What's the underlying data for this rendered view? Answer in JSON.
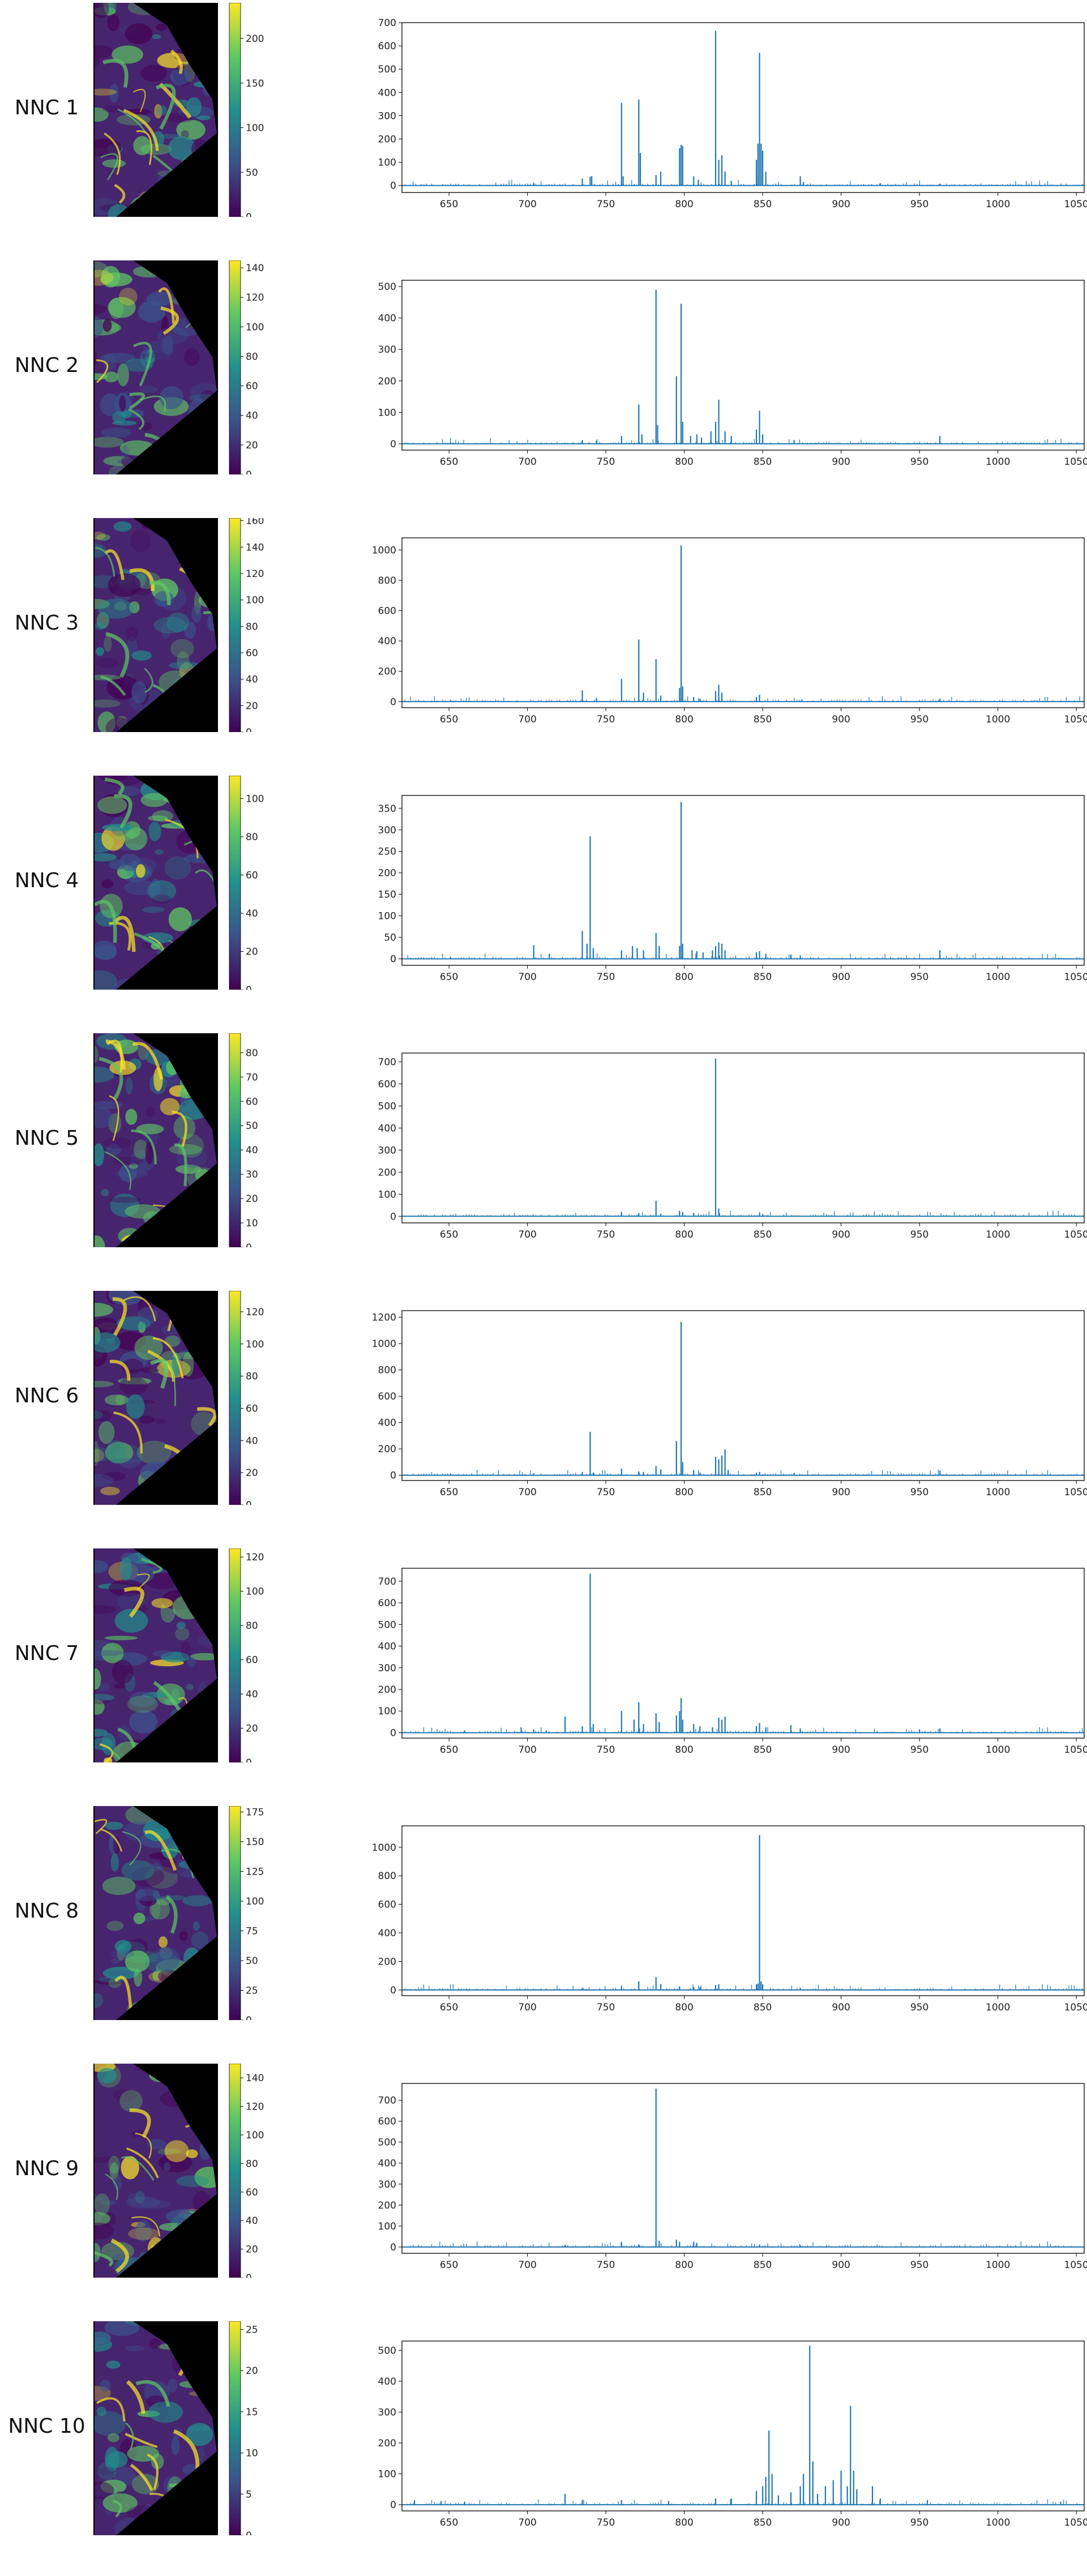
{
  "x_ticks": [
    650,
    700,
    750,
    800,
    850,
    900,
    950,
    1000,
    1050
  ],
  "colors": {
    "line": "#1f77b4",
    "viridis": [
      "#440154",
      "#3b528b",
      "#21918c",
      "#5ec962",
      "#fde725"
    ]
  },
  "chart_data": [
    {
      "type": "line",
      "label": "NNC 1",
      "xlim": [
        620,
        1055
      ],
      "ylim": [
        -30,
        700
      ],
      "y_ticks": [
        0,
        100,
        200,
        300,
        400,
        500,
        600,
        700
      ],
      "cbar_ticks": [
        0,
        50,
        100,
        150,
        200
      ],
      "cbar_max": 240,
      "peaks": [
        [
          704,
          12
        ],
        [
          735,
          30
        ],
        [
          740,
          38
        ],
        [
          741,
          40
        ],
        [
          760,
          355
        ],
        [
          761,
          40
        ],
        [
          771,
          370
        ],
        [
          772,
          140
        ],
        [
          782,
          45
        ],
        [
          785,
          60
        ],
        [
          797,
          160
        ],
        [
          798,
          175
        ],
        [
          799,
          170
        ],
        [
          806,
          40
        ],
        [
          809,
          25
        ],
        [
          820,
          665
        ],
        [
          822,
          110
        ],
        [
          824,
          130
        ],
        [
          826,
          60
        ],
        [
          830,
          20
        ],
        [
          846,
          110
        ],
        [
          847,
          180
        ],
        [
          848,
          570
        ],
        [
          849,
          180
        ],
        [
          850,
          150
        ],
        [
          852,
          60
        ],
        [
          874,
          40
        ],
        [
          876,
          15
        ],
        [
          925,
          10
        ],
        [
          963,
          8
        ]
      ]
    },
    {
      "type": "line",
      "label": "NNC 2",
      "xlim": [
        620,
        1055
      ],
      "ylim": [
        -20,
        520
      ],
      "y_ticks": [
        0,
        100,
        200,
        300,
        400,
        500
      ],
      "cbar_ticks": [
        0,
        20,
        40,
        60,
        80,
        100,
        120,
        140
      ],
      "cbar_max": 145,
      "peaks": [
        [
          651,
          5
        ],
        [
          735,
          12
        ],
        [
          744,
          10
        ],
        [
          760,
          25
        ],
        [
          771,
          125
        ],
        [
          773,
          30
        ],
        [
          782,
          490
        ],
        [
          783,
          60
        ],
        [
          795,
          215
        ],
        [
          798,
          445
        ],
        [
          799,
          70
        ],
        [
          804,
          25
        ],
        [
          808,
          30
        ],
        [
          811,
          20
        ],
        [
          817,
          40
        ],
        [
          820,
          70
        ],
        [
          822,
          140
        ],
        [
          826,
          40
        ],
        [
          830,
          25
        ],
        [
          846,
          45
        ],
        [
          848,
          105
        ],
        [
          850,
          30
        ],
        [
          870,
          12
        ],
        [
          963,
          25
        ]
      ]
    },
    {
      "type": "line",
      "label": "NNC 3",
      "xlim": [
        620,
        1055
      ],
      "ylim": [
        -40,
        1080
      ],
      "y_ticks": [
        0,
        200,
        400,
        600,
        800,
        1000
      ],
      "cbar_ticks": [
        0,
        20,
        40,
        60,
        80,
        100,
        120,
        140,
        160
      ],
      "cbar_max": 162,
      "peaks": [
        [
          651,
          8
        ],
        [
          735,
          75
        ],
        [
          744,
          25
        ],
        [
          760,
          150
        ],
        [
          771,
          410
        ],
        [
          774,
          60
        ],
        [
          782,
          280
        ],
        [
          785,
          40
        ],
        [
          797,
          90
        ],
        [
          798,
          1030
        ],
        [
          799,
          100
        ],
        [
          806,
          30
        ],
        [
          810,
          20
        ],
        [
          820,
          70
        ],
        [
          822,
          110
        ],
        [
          824,
          60
        ],
        [
          846,
          30
        ],
        [
          848,
          45
        ],
        [
          875,
          15
        ],
        [
          963,
          20
        ]
      ]
    },
    {
      "type": "line",
      "label": "NNC 4",
      "xlim": [
        620,
        1055
      ],
      "ylim": [
        -15,
        380
      ],
      "y_ticks": [
        0,
        50,
        100,
        150,
        200,
        250,
        300,
        350
      ],
      "cbar_ticks": [
        0,
        20,
        40,
        60,
        80,
        100
      ],
      "cbar_max": 112,
      "peaks": [
        [
          651,
          5
        ],
        [
          704,
          32
        ],
        [
          714,
          12
        ],
        [
          735,
          65
        ],
        [
          738,
          35
        ],
        [
          740,
          285
        ],
        [
          742,
          25
        ],
        [
          760,
          20
        ],
        [
          767,
          30
        ],
        [
          770,
          25
        ],
        [
          774,
          20
        ],
        [
          782,
          60
        ],
        [
          784,
          30
        ],
        [
          797,
          30
        ],
        [
          798,
          365
        ],
        [
          799,
          35
        ],
        [
          805,
          20
        ],
        [
          808,
          18
        ],
        [
          812,
          15
        ],
        [
          818,
          20
        ],
        [
          820,
          30
        ],
        [
          822,
          38
        ],
        [
          824,
          35
        ],
        [
          826,
          20
        ],
        [
          846,
          15
        ],
        [
          848,
          18
        ],
        [
          852,
          12
        ],
        [
          868,
          10
        ],
        [
          874,
          8
        ],
        [
          963,
          20
        ]
      ]
    },
    {
      "type": "line",
      "label": "NNC 5",
      "xlim": [
        620,
        1055
      ],
      "ylim": [
        -30,
        740
      ],
      "y_ticks": [
        0,
        100,
        200,
        300,
        400,
        500,
        600,
        700
      ],
      "cbar_ticks": [
        0,
        10,
        20,
        30,
        40,
        50,
        60,
        70,
        80
      ],
      "cbar_max": 88,
      "peaks": [
        [
          760,
          20
        ],
        [
          771,
          15
        ],
        [
          782,
          70
        ],
        [
          785,
          12
        ],
        [
          797,
          25
        ],
        [
          799,
          20
        ],
        [
          806,
          15
        ],
        [
          820,
          715
        ],
        [
          822,
          35
        ],
        [
          848,
          15
        ],
        [
          850,
          10
        ]
      ]
    },
    {
      "type": "line",
      "label": "NNC 6",
      "xlim": [
        620,
        1055
      ],
      "ylim": [
        -40,
        1250
      ],
      "y_ticks": [
        0,
        200,
        400,
        600,
        800,
        1000,
        1200
      ],
      "cbar_ticks": [
        0,
        20,
        40,
        60,
        80,
        100,
        120
      ],
      "cbar_max": 133,
      "peaks": [
        [
          651,
          8
        ],
        [
          704,
          15
        ],
        [
          735,
          25
        ],
        [
          740,
          330
        ],
        [
          742,
          20
        ],
        [
          760,
          50
        ],
        [
          771,
          30
        ],
        [
          774,
          25
        ],
        [
          782,
          70
        ],
        [
          785,
          45
        ],
        [
          795,
          260
        ],
        [
          798,
          1165
        ],
        [
          799,
          100
        ],
        [
          806,
          40
        ],
        [
          810,
          20
        ],
        [
          820,
          140
        ],
        [
          822,
          120
        ],
        [
          824,
          150
        ],
        [
          826,
          195
        ],
        [
          828,
          40
        ],
        [
          846,
          20
        ],
        [
          848,
          25
        ],
        [
          870,
          15
        ],
        [
          963,
          35
        ]
      ]
    },
    {
      "type": "line",
      "label": "NNC 7",
      "xlim": [
        620,
        1055
      ],
      "ylim": [
        -25,
        760
      ],
      "y_ticks": [
        0,
        100,
        200,
        300,
        400,
        500,
        600,
        700
      ],
      "cbar_ticks": [
        0,
        20,
        40,
        60,
        80,
        100,
        120
      ],
      "cbar_max": 125,
      "peaks": [
        [
          660,
          10
        ],
        [
          696,
          25
        ],
        [
          704,
          15
        ],
        [
          712,
          10
        ],
        [
          724,
          75
        ],
        [
          735,
          30
        ],
        [
          740,
          735
        ],
        [
          742,
          40
        ],
        [
          760,
          100
        ],
        [
          768,
          60
        ],
        [
          771,
          140
        ],
        [
          774,
          40
        ],
        [
          782,
          90
        ],
        [
          784,
          50
        ],
        [
          795,
          80
        ],
        [
          797,
          100
        ],
        [
          798,
          160
        ],
        [
          799,
          60
        ],
        [
          806,
          40
        ],
        [
          810,
          30
        ],
        [
          818,
          25
        ],
        [
          822,
          70
        ],
        [
          824,
          60
        ],
        [
          826,
          75
        ],
        [
          846,
          30
        ],
        [
          848,
          45
        ],
        [
          852,
          25
        ],
        [
          868,
          35
        ],
        [
          874,
          20
        ],
        [
          950,
          15
        ],
        [
          963,
          20
        ]
      ]
    },
    {
      "type": "line",
      "label": "NNC 8",
      "xlim": [
        620,
        1055
      ],
      "ylim": [
        -40,
        1150
      ],
      "y_ticks": [
        0,
        200,
        400,
        600,
        800,
        1000
      ],
      "cbar_ticks": [
        0,
        25,
        50,
        75,
        100,
        125,
        150,
        175
      ],
      "cbar_max": 180,
      "peaks": [
        [
          735,
          15
        ],
        [
          760,
          30
        ],
        [
          771,
          60
        ],
        [
          782,
          90
        ],
        [
          785,
          40
        ],
        [
          797,
          25
        ],
        [
          806,
          20
        ],
        [
          810,
          20
        ],
        [
          820,
          35
        ],
        [
          822,
          40
        ],
        [
          846,
          40
        ],
        [
          847,
          45
        ],
        [
          848,
          1085
        ],
        [
          849,
          60
        ],
        [
          850,
          40
        ],
        [
          874,
          15
        ]
      ]
    },
    {
      "type": "line",
      "label": "NNC 9",
      "xlim": [
        620,
        1055
      ],
      "ylim": [
        -30,
        780
      ],
      "y_ticks": [
        0,
        100,
        200,
        300,
        400,
        500,
        600,
        700
      ],
      "cbar_ticks": [
        0,
        20,
        40,
        60,
        80,
        100,
        120,
        140
      ],
      "cbar_max": 150,
      "peaks": [
        [
          724,
          10
        ],
        [
          760,
          25
        ],
        [
          771,
          12
        ],
        [
          782,
          755
        ],
        [
          784,
          30
        ],
        [
          795,
          35
        ],
        [
          797,
          25
        ],
        [
          806,
          25
        ],
        [
          808,
          20
        ],
        [
          848,
          12
        ],
        [
          874,
          8
        ]
      ]
    },
    {
      "type": "line",
      "label": "NNC 10",
      "xlim": [
        620,
        1055
      ],
      "ylim": [
        -20,
        530
      ],
      "y_ticks": [
        0,
        100,
        200,
        300,
        400,
        500
      ],
      "cbar_ticks": [
        0,
        5,
        10,
        15,
        20,
        25
      ],
      "cbar_max": 26,
      "peaks": [
        [
          628,
          15
        ],
        [
          645,
          12
        ],
        [
          660,
          10
        ],
        [
          724,
          35
        ],
        [
          735,
          15
        ],
        [
          760,
          15
        ],
        [
          790,
          12
        ],
        [
          820,
          20
        ],
        [
          830,
          20
        ],
        [
          846,
          45
        ],
        [
          850,
          60
        ],
        [
          852,
          90
        ],
        [
          854,
          240
        ],
        [
          856,
          100
        ],
        [
          860,
          30
        ],
        [
          868,
          40
        ],
        [
          874,
          60
        ],
        [
          876,
          100
        ],
        [
          880,
          515
        ],
        [
          882,
          140
        ],
        [
          885,
          35
        ],
        [
          890,
          60
        ],
        [
          895,
          80
        ],
        [
          900,
          110
        ],
        [
          904,
          60
        ],
        [
          906,
          320
        ],
        [
          908,
          110
        ],
        [
          910,
          50
        ],
        [
          920,
          60
        ],
        [
          925,
          20
        ],
        [
          955,
          15
        ],
        [
          1040,
          10
        ]
      ]
    }
  ]
}
